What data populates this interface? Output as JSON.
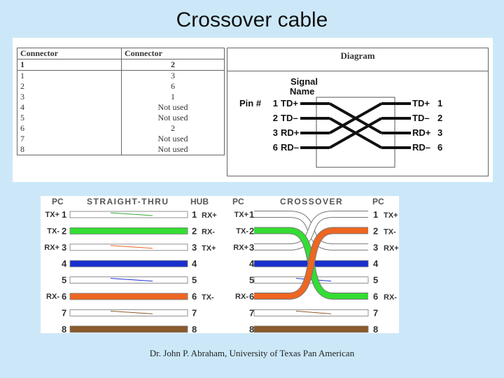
{
  "title": "Crossover cable",
  "table": {
    "headers": [
      "Connector",
      "Connector",
      "Diagram"
    ],
    "subheaders": [
      "1",
      "2"
    ],
    "rows": [
      [
        "1",
        "3"
      ],
      [
        "2",
        "6"
      ],
      [
        "3",
        "1"
      ],
      [
        "4",
        "Not used"
      ],
      [
        "5",
        "Not used"
      ],
      [
        "6",
        "2"
      ],
      [
        "7",
        "Not used"
      ],
      [
        "8",
        "Not used"
      ]
    ]
  },
  "signal_diagram": {
    "signal_label_1": "Signal",
    "signal_label_2": "Name",
    "pin_label": "Pin #",
    "left": [
      {
        "pin": "1",
        "signal": "TD+"
      },
      {
        "pin": "2",
        "signal": "TD–"
      },
      {
        "pin": "3",
        "signal": "RD+"
      },
      {
        "pin": "6",
        "signal": "RD–"
      }
    ],
    "right": [
      {
        "signal": "TD+",
        "pin": "1"
      },
      {
        "signal": "TD–",
        "pin": "2"
      },
      {
        "signal": "RD+",
        "pin": "3"
      },
      {
        "signal": "RD–",
        "pin": "6"
      }
    ]
  },
  "wiring": {
    "headers": {
      "pc_left": "PC",
      "straight_thru": "STRAIGHT-THRU",
      "hub": "HUB",
      "pc_mid": "PC",
      "crossover": "CROSSOVER",
      "pc_right": "PC"
    },
    "straight": [
      {
        "left_label": "TX+",
        "pin": "1",
        "right_label": "RX+",
        "color": "#ffffff",
        "stripe": "#33aa33"
      },
      {
        "left_label": "TX-",
        "pin": "2",
        "right_label": "RX-",
        "color": "#33dd33",
        "stripe": ""
      },
      {
        "left_label": "RX+",
        "pin": "3",
        "right_label": "TX+",
        "color": "#ffffff",
        "stripe": "#ee6622"
      },
      {
        "left_label": "",
        "pin": "4",
        "right_label": "",
        "color": "#1a2fcf",
        "stripe": ""
      },
      {
        "left_label": "",
        "pin": "5",
        "right_label": "",
        "color": "#ffffff",
        "stripe": "#1a2fcf"
      },
      {
        "left_label": "RX-",
        "pin": "6",
        "right_label": "TX-",
        "color": "#ee6622",
        "stripe": ""
      },
      {
        "left_label": "",
        "pin": "7",
        "right_label": "",
        "color": "#ffffff",
        "stripe": "#8a5a2b"
      },
      {
        "left_label": "",
        "pin": "8",
        "right_label": "",
        "color": "#8a5a2b",
        "stripe": ""
      }
    ],
    "cross_left_labels": [
      "TX+",
      "TX-",
      "RX+",
      "",
      "",
      "RX-",
      "",
      ""
    ],
    "cross_right_labels": [
      "TX+",
      "TX-",
      "RX+",
      "",
      "",
      "RX-",
      "",
      ""
    ],
    "pins": [
      "1",
      "2",
      "3",
      "4",
      "5",
      "6",
      "7",
      "8"
    ]
  },
  "footer": "Dr. John P. Abraham, University of Texas Pan American"
}
